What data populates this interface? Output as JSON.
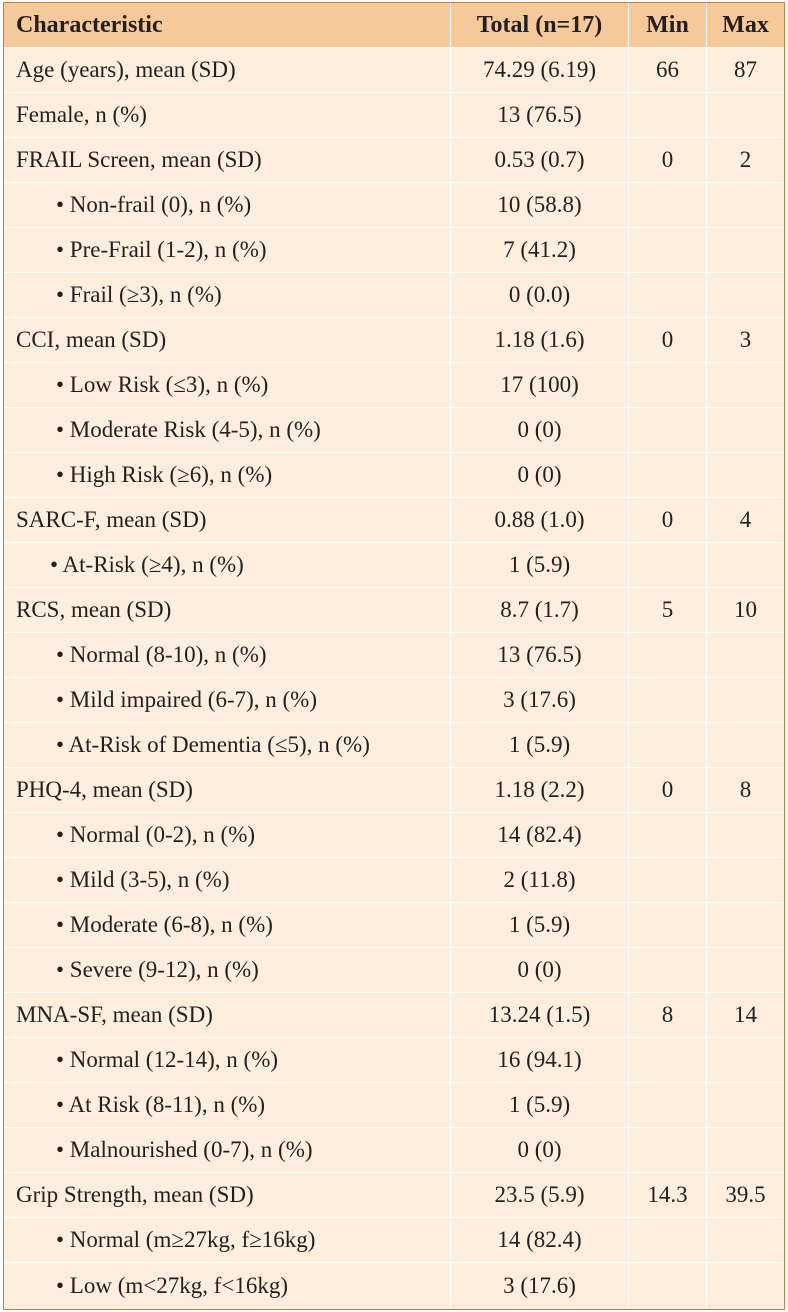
{
  "header": {
    "characteristic": "Characteristic",
    "total": "Total (n=17)",
    "min": "Min",
    "max": "Max"
  },
  "rows": [
    {
      "label": "Age (years), mean (SD)",
      "total": "74.29 (6.19)",
      "min": "66",
      "max": "87"
    },
    {
      "label": "Female, n (%)",
      "total": "13 (76.5)",
      "min": "",
      "max": ""
    },
    {
      "label": "FRAIL Screen, mean (SD)",
      "total": "0.53 (0.7)",
      "min": "0",
      "max": "2"
    },
    {
      "label": "• Non-frail (0), n (%)",
      "total": "10 (58.8)",
      "min": "",
      "max": ""
    },
    {
      "label": "• Pre-Frail (1-2), n (%)",
      "total": "7 (41.2)",
      "min": "",
      "max": ""
    },
    {
      "label": "• Frail (≥3), n (%)",
      "total": "0 (0.0)",
      "min": "",
      "max": ""
    },
    {
      "label": "CCI, mean (SD)",
      "total": "1.18 (1.6)",
      "min": "0",
      "max": "3"
    },
    {
      "label": "• Low Risk (≤3), n (%)",
      "total": "17 (100)",
      "min": "",
      "max": ""
    },
    {
      "label": "• Moderate Risk (4-5), n (%)",
      "total": "0 (0)",
      "min": "",
      "max": ""
    },
    {
      "label": "• High Risk (≥6), n (%)",
      "total": "0 (0)",
      "min": "",
      "max": ""
    },
    {
      "label": "SARC-F, mean (SD)",
      "total": "0.88 (1.0)",
      "min": "0",
      "max": "4"
    },
    {
      "label": "• At-Risk (≥4), n (%)",
      "total": "1 (5.9)",
      "min": "",
      "max": ""
    },
    {
      "label": "RCS, mean (SD)",
      "total": "8.7 (1.7)",
      "min": "5",
      "max": "10"
    },
    {
      "label": "• Normal (8-10), n (%)",
      "total": "13 (76.5)",
      "min": "",
      "max": ""
    },
    {
      "label": "• Mild impaired (6-7), n (%)",
      "total": "3 (17.6)",
      "min": "",
      "max": ""
    },
    {
      "label": "• At-Risk of Dementia (≤5), n (%)",
      "total": "1 (5.9)",
      "min": "",
      "max": ""
    },
    {
      "label": "PHQ-4, mean (SD)",
      "total": "1.18 (2.2)",
      "min": "0",
      "max": "8"
    },
    {
      "label": "• Normal (0-2), n (%)",
      "total": "14 (82.4)",
      "min": "",
      "max": ""
    },
    {
      "label": "• Mild (3-5), n (%)",
      "total": "2 (11.8)",
      "min": "",
      "max": ""
    },
    {
      "label": "• Moderate (6-8), n (%)",
      "total": "1 (5.9)",
      "min": "",
      "max": ""
    },
    {
      "label": "• Severe (9-12), n (%)",
      "total": "0 (0)",
      "min": "",
      "max": ""
    },
    {
      "label": "MNA-SF, mean (SD)",
      "total": "13.24 (1.5)",
      "min": "8",
      "max": "14"
    },
    {
      "label": "• Normal (12-14), n (%)",
      "total": "16 (94.1)",
      "min": "",
      "max": ""
    },
    {
      "label": "• At Risk (8-11), n (%)",
      "total": "1 (5.9)",
      "min": "",
      "max": ""
    },
    {
      "label": "• Malnourished (0-7), n (%)",
      "total": "0 (0)",
      "min": "",
      "max": ""
    },
    {
      "label": "Grip Strength, mean (SD)",
      "total": "23.5 (5.9)",
      "min": "14.3",
      "max": "39.5"
    },
    {
      "label": "• Normal (m≥27kg, f≥16kg)",
      "total": "14 (82.4)",
      "min": "",
      "max": ""
    },
    {
      "label": "• Low (m<27kg, f<16kg)",
      "total": "3 (17.6)",
      "min": "",
      "max": ""
    }
  ]
}
